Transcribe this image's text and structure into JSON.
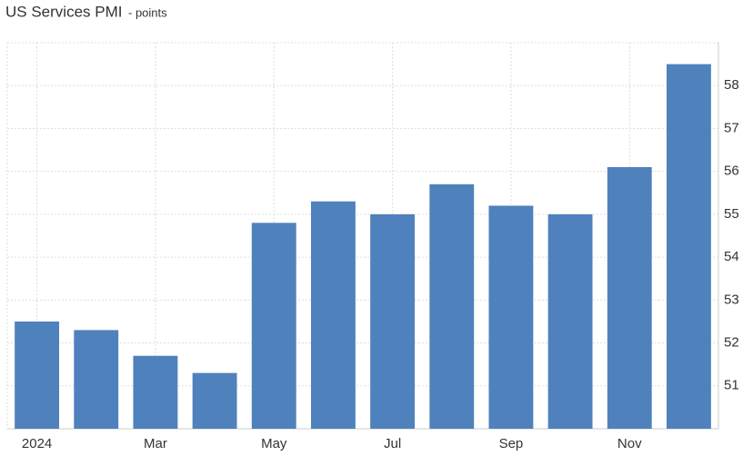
{
  "chart_data": {
    "type": "bar",
    "title": "US Services PMI",
    "subtitle": "- points",
    "categories": [
      "2024",
      null,
      "Mar",
      null,
      "May",
      null,
      "Jul",
      null,
      "Sep",
      null,
      "Nov",
      null
    ],
    "values": [
      52.5,
      52.3,
      51.7,
      51.3,
      54.8,
      55.3,
      55.0,
      55.7,
      55.2,
      55.0,
      56.1,
      58.5
    ],
    "color": "#4f81bd",
    "ylim": [
      50,
      59
    ],
    "yticks": [
      51,
      52,
      53,
      54,
      55,
      56,
      57,
      58
    ],
    "grid": true
  }
}
